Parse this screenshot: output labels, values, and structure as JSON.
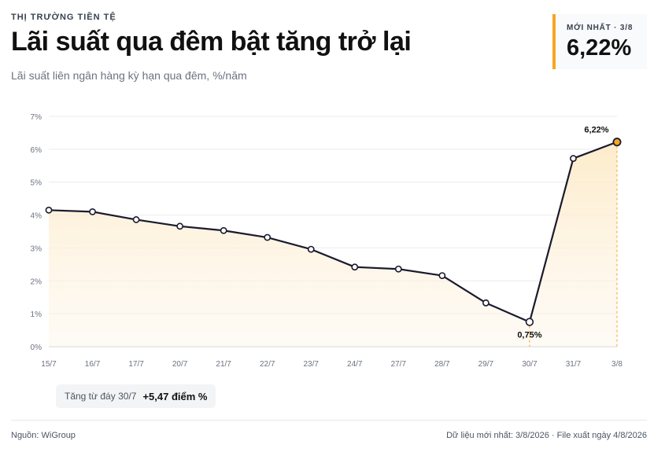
{
  "header": {
    "kicker": "THỊ TRƯỜNG TIỀN TỆ",
    "title": "Lãi suất qua đêm bật tăng trở lại",
    "subtitle": "Lãi suất liên ngân hàng kỳ hạn qua đêm, %/năm"
  },
  "latest": {
    "label": "MỚI NHẤT · 3/8",
    "value": "6,22%"
  },
  "chart_data": {
    "type": "line",
    "categories": [
      "15/7",
      "16/7",
      "17/7",
      "20/7",
      "21/7",
      "22/7",
      "23/7",
      "24/7",
      "27/7",
      "28/7",
      "29/7",
      "30/7",
      "31/7",
      "3/8"
    ],
    "series": [
      {
        "values": [
          4.15,
          4.1,
          3.86,
          3.66,
          3.53,
          3.32,
          2.96,
          2.42,
          2.36,
          2.16,
          1.33,
          0.75,
          5.72,
          6.22
        ]
      }
    ],
    "y_ticks": [
      "0%",
      "1%",
      "2%",
      "3%",
      "4%",
      "5%",
      "6%",
      "7%"
    ],
    "ylim": [
      0,
      7
    ],
    "grid": true,
    "annotations": [
      {
        "category": "30/7",
        "label": "0,75%"
      },
      {
        "category": "3/8",
        "label": "6,22%"
      }
    ],
    "colors": {
      "line": "#1a1a2e",
      "area": "#fdf0d8",
      "highlight": "#f5a623",
      "grid": "#ececec",
      "axis_text": "#6b7280"
    }
  },
  "badge": {
    "label": "Tăng từ đáy 30/7",
    "value": "+5,47 điểm %"
  },
  "footer": {
    "source": "Nguồn: WiGroup",
    "updated": "Dữ liệu mới nhất: 3/8/2026 · File xuất ngày 4/8/2026"
  }
}
